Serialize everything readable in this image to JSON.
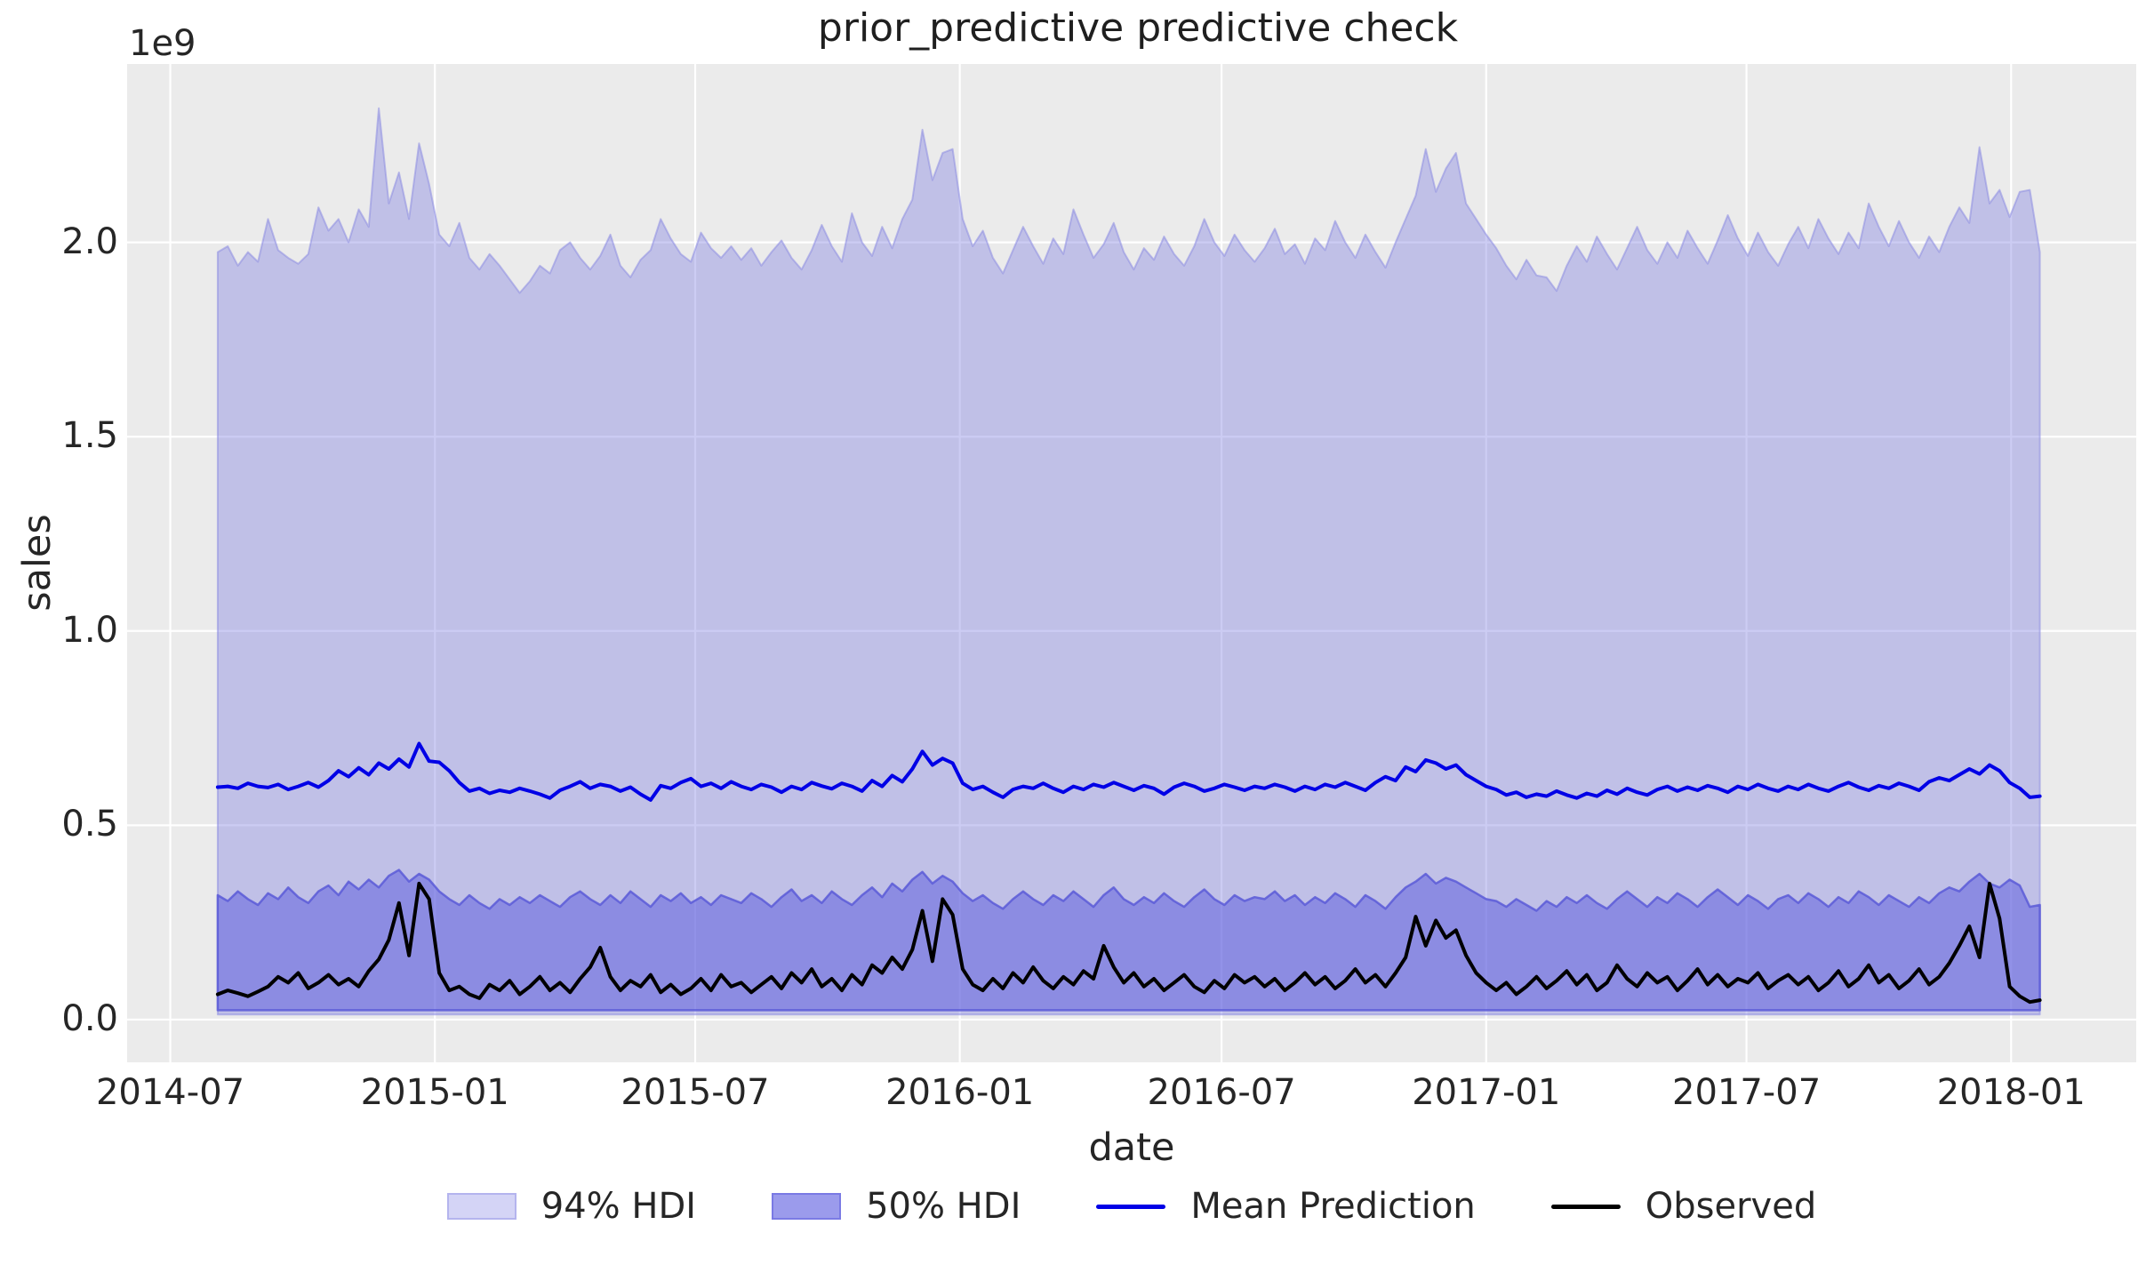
{
  "chart_data": {
    "type": "line",
    "title": "prior_predictive predictive check",
    "xlabel": "date",
    "ylabel": "sales",
    "y_offset_label": "1e9",
    "grid": true,
    "legend_position": "bottom-center",
    "ylim": [
      -0.11,
      2.459
    ],
    "xlim_dates": [
      "2014-06-01",
      "2018-03-29"
    ],
    "x_start_date": "2014-08-03",
    "x_step_days": 7,
    "y_ticks": [
      {
        "value": 0.0,
        "label": "0.0"
      },
      {
        "value": 0.5,
        "label": "0.5"
      },
      {
        "value": 1.0,
        "label": "1.0"
      },
      {
        "value": 1.5,
        "label": "1.5"
      },
      {
        "value": 2.0,
        "label": "2.0"
      }
    ],
    "x_ticks": [
      {
        "date": "2014-07-01",
        "label": "2014-07"
      },
      {
        "date": "2015-01-01",
        "label": "2015-01"
      },
      {
        "date": "2015-07-01",
        "label": "2015-07"
      },
      {
        "date": "2016-01-01",
        "label": "2016-01"
      },
      {
        "date": "2016-07-01",
        "label": "2016-07"
      },
      {
        "date": "2017-01-01",
        "label": "2017-01"
      },
      {
        "date": "2017-07-01",
        "label": "2017-07"
      },
      {
        "date": "2018-01-01",
        "label": "2018-01"
      }
    ],
    "series": {
      "hdi94_upper": [
        1.975,
        1.99,
        1.94,
        1.975,
        1.95,
        2.06,
        1.98,
        1.96,
        1.945,
        1.97,
        2.09,
        2.03,
        2.06,
        2.0,
        2.085,
        2.04,
        2.345,
        2.1,
        2.18,
        2.06,
        2.255,
        2.15,
        2.02,
        1.99,
        2.05,
        1.96,
        1.93,
        1.97,
        1.94,
        1.905,
        1.87,
        1.9,
        1.94,
        1.92,
        1.98,
        2.0,
        1.96,
        1.93,
        1.965,
        2.02,
        1.94,
        1.91,
        1.955,
        1.98,
        2.06,
        2.01,
        1.97,
        1.95,
        2.025,
        1.985,
        1.96,
        1.99,
        1.955,
        1.985,
        1.94,
        1.975,
        2.005,
        1.96,
        1.93,
        1.98,
        2.045,
        1.99,
        1.95,
        2.075,
        2.0,
        1.965,
        2.04,
        1.985,
        2.06,
        2.11,
        2.29,
        2.16,
        2.23,
        2.24,
        2.06,
        1.99,
        2.03,
        1.96,
        1.92,
        1.98,
        2.04,
        1.99,
        1.945,
        2.01,
        1.97,
        2.085,
        2.02,
        1.96,
        1.995,
        2.05,
        1.975,
        1.93,
        1.985,
        1.955,
        2.015,
        1.97,
        1.94,
        1.99,
        2.06,
        2.0,
        1.965,
        2.02,
        1.98,
        1.95,
        1.985,
        2.035,
        1.97,
        1.995,
        1.945,
        2.01,
        1.98,
        2.055,
        2.0,
        1.96,
        2.02,
        1.975,
        1.935,
        2.0,
        2.06,
        2.12,
        2.24,
        2.13,
        2.19,
        2.23,
        2.1,
        2.06,
        2.02,
        1.985,
        1.94,
        1.905,
        1.955,
        1.915,
        1.91,
        1.875,
        1.94,
        1.99,
        1.95,
        2.015,
        1.97,
        1.93,
        1.985,
        2.04,
        1.98,
        1.945,
        2.0,
        1.96,
        2.03,
        1.985,
        1.945,
        2.005,
        2.07,
        2.01,
        1.965,
        2.025,
        1.975,
        1.94,
        1.995,
        2.04,
        1.985,
        2.06,
        2.01,
        1.97,
        2.025,
        1.985,
        2.1,
        2.04,
        1.99,
        2.055,
        2.0,
        1.96,
        2.015,
        1.975,
        2.04,
        2.09,
        2.05,
        2.245,
        2.1,
        2.135,
        2.065,
        2.13,
        2.135,
        1.975
      ],
      "hdi94_lower_const": 0.013,
      "hdi50_upper": [
        0.32,
        0.305,
        0.33,
        0.31,
        0.295,
        0.325,
        0.31,
        0.34,
        0.315,
        0.3,
        0.33,
        0.345,
        0.32,
        0.355,
        0.335,
        0.36,
        0.34,
        0.37,
        0.385,
        0.355,
        0.375,
        0.36,
        0.33,
        0.31,
        0.295,
        0.32,
        0.3,
        0.285,
        0.31,
        0.295,
        0.315,
        0.3,
        0.32,
        0.305,
        0.29,
        0.315,
        0.33,
        0.31,
        0.295,
        0.32,
        0.3,
        0.33,
        0.31,
        0.29,
        0.32,
        0.305,
        0.325,
        0.3,
        0.315,
        0.295,
        0.32,
        0.31,
        0.3,
        0.325,
        0.31,
        0.29,
        0.315,
        0.335,
        0.305,
        0.32,
        0.3,
        0.33,
        0.31,
        0.295,
        0.32,
        0.34,
        0.315,
        0.35,
        0.33,
        0.36,
        0.38,
        0.35,
        0.37,
        0.355,
        0.325,
        0.305,
        0.32,
        0.3,
        0.285,
        0.31,
        0.33,
        0.31,
        0.295,
        0.32,
        0.305,
        0.33,
        0.31,
        0.29,
        0.32,
        0.34,
        0.31,
        0.295,
        0.315,
        0.3,
        0.325,
        0.305,
        0.29,
        0.315,
        0.335,
        0.31,
        0.295,
        0.32,
        0.305,
        0.315,
        0.31,
        0.33,
        0.305,
        0.32,
        0.295,
        0.315,
        0.3,
        0.325,
        0.31,
        0.29,
        0.32,
        0.305,
        0.285,
        0.315,
        0.34,
        0.355,
        0.375,
        0.35,
        0.365,
        0.355,
        0.34,
        0.325,
        0.31,
        0.305,
        0.29,
        0.31,
        0.295,
        0.28,
        0.305,
        0.29,
        0.315,
        0.3,
        0.32,
        0.3,
        0.285,
        0.31,
        0.33,
        0.31,
        0.29,
        0.315,
        0.3,
        0.325,
        0.31,
        0.29,
        0.315,
        0.335,
        0.315,
        0.295,
        0.32,
        0.305,
        0.285,
        0.31,
        0.32,
        0.3,
        0.325,
        0.31,
        0.29,
        0.315,
        0.3,
        0.33,
        0.315,
        0.295,
        0.32,
        0.305,
        0.29,
        0.315,
        0.3,
        0.325,
        0.34,
        0.33,
        0.355,
        0.375,
        0.35,
        0.34,
        0.36,
        0.345,
        0.29,
        0.295
      ],
      "hdi50_lower_const": 0.024,
      "mean": [
        0.598,
        0.6,
        0.595,
        0.608,
        0.6,
        0.597,
        0.605,
        0.592,
        0.6,
        0.61,
        0.598,
        0.615,
        0.64,
        0.625,
        0.648,
        0.63,
        0.66,
        0.645,
        0.67,
        0.65,
        0.71,
        0.665,
        0.662,
        0.64,
        0.61,
        0.588,
        0.595,
        0.582,
        0.59,
        0.585,
        0.595,
        0.588,
        0.58,
        0.57,
        0.59,
        0.6,
        0.612,
        0.595,
        0.605,
        0.6,
        0.588,
        0.598,
        0.58,
        0.565,
        0.602,
        0.595,
        0.61,
        0.62,
        0.6,
        0.608,
        0.595,
        0.612,
        0.6,
        0.592,
        0.605,
        0.598,
        0.585,
        0.6,
        0.592,
        0.61,
        0.601,
        0.594,
        0.608,
        0.6,
        0.588,
        0.615,
        0.6,
        0.628,
        0.612,
        0.645,
        0.69,
        0.655,
        0.672,
        0.66,
        0.608,
        0.592,
        0.6,
        0.585,
        0.572,
        0.592,
        0.6,
        0.595,
        0.608,
        0.595,
        0.585,
        0.6,
        0.592,
        0.605,
        0.598,
        0.61,
        0.6,
        0.59,
        0.602,
        0.595,
        0.58,
        0.598,
        0.608,
        0.6,
        0.588,
        0.595,
        0.605,
        0.598,
        0.59,
        0.6,
        0.595,
        0.605,
        0.598,
        0.588,
        0.6,
        0.592,
        0.605,
        0.598,
        0.61,
        0.6,
        0.59,
        0.61,
        0.625,
        0.615,
        0.65,
        0.638,
        0.668,
        0.66,
        0.645,
        0.655,
        0.63,
        0.615,
        0.6,
        0.592,
        0.578,
        0.585,
        0.572,
        0.58,
        0.575,
        0.588,
        0.578,
        0.57,
        0.582,
        0.575,
        0.59,
        0.58,
        0.595,
        0.585,
        0.578,
        0.592,
        0.6,
        0.588,
        0.598,
        0.59,
        0.602,
        0.595,
        0.585,
        0.6,
        0.592,
        0.605,
        0.595,
        0.588,
        0.6,
        0.592,
        0.605,
        0.595,
        0.588,
        0.6,
        0.61,
        0.598,
        0.59,
        0.602,
        0.595,
        0.608,
        0.6,
        0.59,
        0.612,
        0.622,
        0.615,
        0.63,
        0.645,
        0.632,
        0.655,
        0.64,
        0.61,
        0.595,
        0.572,
        0.575
      ],
      "observed": [
        0.065,
        0.075,
        0.068,
        0.06,
        0.072,
        0.085,
        0.11,
        0.095,
        0.12,
        0.08,
        0.095,
        0.115,
        0.09,
        0.105,
        0.085,
        0.125,
        0.155,
        0.205,
        0.3,
        0.165,
        0.35,
        0.31,
        0.12,
        0.075,
        0.085,
        0.065,
        0.055,
        0.09,
        0.075,
        0.1,
        0.065,
        0.085,
        0.11,
        0.075,
        0.095,
        0.07,
        0.105,
        0.135,
        0.185,
        0.11,
        0.075,
        0.1,
        0.085,
        0.115,
        0.07,
        0.09,
        0.065,
        0.08,
        0.105,
        0.075,
        0.115,
        0.085,
        0.095,
        0.07,
        0.09,
        0.11,
        0.08,
        0.12,
        0.095,
        0.13,
        0.085,
        0.105,
        0.075,
        0.115,
        0.09,
        0.14,
        0.12,
        0.16,
        0.13,
        0.18,
        0.28,
        0.15,
        0.31,
        0.27,
        0.13,
        0.09,
        0.075,
        0.105,
        0.08,
        0.12,
        0.095,
        0.135,
        0.1,
        0.08,
        0.11,
        0.09,
        0.125,
        0.105,
        0.19,
        0.135,
        0.095,
        0.12,
        0.085,
        0.105,
        0.075,
        0.095,
        0.115,
        0.085,
        0.07,
        0.1,
        0.08,
        0.115,
        0.095,
        0.11,
        0.085,
        0.105,
        0.075,
        0.095,
        0.12,
        0.09,
        0.11,
        0.08,
        0.1,
        0.13,
        0.095,
        0.115,
        0.085,
        0.12,
        0.16,
        0.265,
        0.19,
        0.255,
        0.21,
        0.23,
        0.165,
        0.12,
        0.095,
        0.075,
        0.095,
        0.065,
        0.085,
        0.11,
        0.08,
        0.1,
        0.125,
        0.09,
        0.115,
        0.075,
        0.095,
        0.14,
        0.105,
        0.085,
        0.12,
        0.095,
        0.11,
        0.075,
        0.1,
        0.13,
        0.09,
        0.115,
        0.085,
        0.105,
        0.095,
        0.12,
        0.08,
        0.1,
        0.115,
        0.09,
        0.11,
        0.075,
        0.095,
        0.125,
        0.085,
        0.105,
        0.14,
        0.095,
        0.115,
        0.08,
        0.1,
        0.13,
        0.09,
        0.11,
        0.145,
        0.19,
        0.24,
        0.16,
        0.35,
        0.26,
        0.085,
        0.06,
        0.045,
        0.05
      ]
    },
    "legend": [
      {
        "label": "94% HDI",
        "type": "patch",
        "key": "hdi94"
      },
      {
        "label": "50% HDI",
        "type": "patch",
        "key": "hdi50"
      },
      {
        "label": "Mean Prediction",
        "type": "line",
        "key": "mean"
      },
      {
        "label": "Observed",
        "type": "line",
        "key": "observed"
      }
    ],
    "colors": {
      "figure_bg": "#ffffff",
      "axes_bg": "#ebebeb",
      "grid": "#ffffff",
      "hdi94_fill": "rgba(128,128,224,0.40)",
      "hdi94_edge": "rgba(140,140,225,0.55)",
      "hdi50_fill": "rgba(92,92,222,0.52)",
      "hdi50_edge": "rgba(90,90,215,0.85)",
      "mean_line": "#0000e6",
      "observed_line": "#000000",
      "text": "#262626",
      "legend_hdi94_bg": "#d4d4f6",
      "legend_hdi94_border": "#b4b4ee",
      "legend_hdi50_bg": "#9b9bec",
      "legend_hdi50_border": "#7a7ae4"
    }
  }
}
